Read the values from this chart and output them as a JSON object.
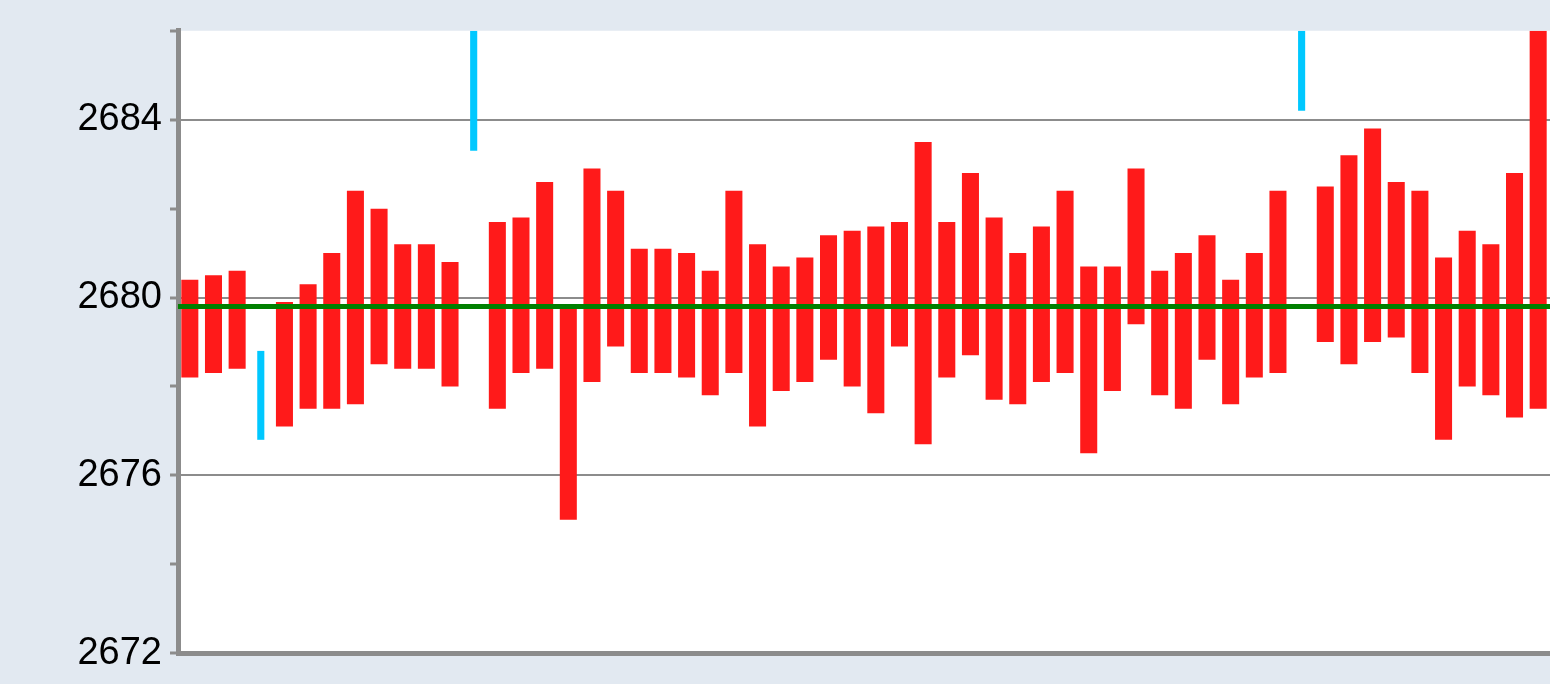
{
  "chart_data": {
    "type": "bar",
    "categories": [
      null,
      null,
      null,
      null,
      null,
      null,
      null,
      null,
      null,
      null,
      null,
      null,
      null,
      null,
      null,
      null,
      null,
      null,
      null,
      null,
      null,
      null,
      null,
      null,
      null,
      null,
      null,
      null,
      null,
      null,
      null,
      null,
      null,
      null,
      null,
      null,
      null,
      null,
      null,
      null,
      null,
      null,
      null,
      null,
      null,
      null,
      null,
      null,
      null,
      null,
      null,
      null,
      null,
      null,
      null,
      null,
      null,
      null
    ],
    "series": [
      {
        "color": "#ff1a1a",
        "base": [
          2678.2,
          2678.3,
          2678.4,
          null,
          2677.1,
          2677.5,
          2677.5,
          2677.6,
          2678.5,
          2678.4,
          2678.4,
          2678.0,
          null,
          2677.5,
          2678.3,
          2678.4,
          2675.0,
          2678.1,
          2678.9,
          2678.3,
          2678.3,
          2678.2,
          2677.8,
          2678.3,
          2677.1,
          2677.9,
          2678.1,
          2678.6,
          2678.0,
          2677.4,
          2678.9,
          2676.7,
          2678.2,
          2678.7,
          2677.7,
          2677.6,
          2678.1,
          2678.3,
          2676.5,
          2677.9,
          2679.4,
          2677.8,
          2677.5,
          2678.6,
          2677.6,
          2678.2,
          2678.3,
          null,
          2679.0,
          2678.5,
          2679.0,
          2679.1,
          2678.3,
          2676.8,
          2678.0,
          2677.8,
          2677.3,
          2677.5
        ],
        "values": [
          2.2,
          2.2,
          2.2,
          null,
          2.8,
          2.8,
          3.5,
          4.8,
          3.5,
          2.8,
          2.8,
          2.8,
          null,
          4.2,
          3.5,
          4.2,
          4.8,
          4.8,
          3.5,
          2.8,
          2.8,
          2.8,
          2.8,
          4.1,
          4.1,
          2.8,
          2.8,
          2.8,
          3.5,
          4.2,
          2.8,
          6.8,
          3.5,
          4.1,
          4.1,
          3.4,
          3.5,
          4.1,
          4.2,
          2.8,
          3.5,
          2.8,
          3.5,
          2.8,
          2.8,
          2.8,
          4.1,
          null,
          3.5,
          4.7,
          4.8,
          3.5,
          4.1,
          4.1,
          3.5,
          3.4,
          5.5,
          8.5
        ]
      },
      {
        "color": "#00c8ff",
        "base": [
          null,
          null,
          null,
          2676.8,
          null,
          null,
          null,
          null,
          null,
          null,
          null,
          null,
          2683.3,
          null,
          null,
          null,
          null,
          null,
          null,
          null,
          null,
          null,
          null,
          null,
          null,
          null,
          null,
          null,
          null,
          null,
          null,
          null,
          null,
          null,
          null,
          null,
          null,
          null,
          null,
          null,
          null,
          null,
          null,
          null,
          null,
          null,
          null,
          2684.2,
          null,
          null,
          null,
          null,
          null,
          null,
          null,
          null,
          null,
          null
        ],
        "values": [
          null,
          null,
          null,
          2.0,
          null,
          null,
          null,
          null,
          null,
          null,
          null,
          null,
          2.7,
          null,
          null,
          null,
          null,
          null,
          null,
          null,
          null,
          null,
          null,
          null,
          null,
          null,
          null,
          null,
          null,
          null,
          null,
          null,
          null,
          null,
          null,
          null,
          null,
          null,
          null,
          null,
          null,
          null,
          null,
          null,
          null,
          null,
          null,
          1.8,
          null,
          null,
          null,
          null,
          null,
          null,
          null,
          null,
          null,
          null
        ]
      }
    ],
    "ylim": [
      2672,
      2686
    ],
    "yticks": [
      2672,
      {
        "value": 2674,
        "label": null
      },
      2676,
      {
        "value": 2678,
        "label": null
      },
      2680,
      {
        "value": 2682,
        "label": null
      },
      2684,
      {
        "value": 2686,
        "label": null
      }
    ],
    "grid": "y",
    "tick_labels": "y",
    "legend": false,
    "ref_lines": [
      {
        "axis": "y",
        "value": 2679.8,
        "color": "#008000"
      }
    ]
  }
}
